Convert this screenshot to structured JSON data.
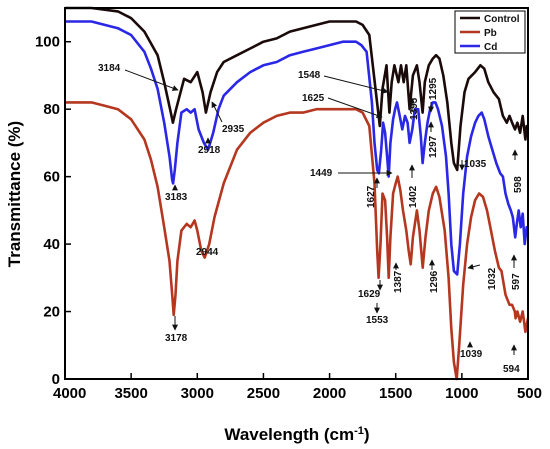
{
  "chart_data": {
    "type": "line",
    "xlabel": "Wavelength (cm",
    "xlabel_sup": "-1",
    "xlabel_close": ")",
    "ylabel": "Transmittance (%)",
    "xlim": [
      4000,
      500
    ],
    "ylim": [
      0,
      110
    ],
    "x_ticks": [
      4000,
      3500,
      3000,
      2500,
      2000,
      1500,
      1000,
      500
    ],
    "y_ticks": [
      0,
      20,
      40,
      60,
      80,
      100
    ],
    "legend_position": "top-right",
    "grid": false,
    "series": [
      {
        "name": "Control",
        "color": "#1a0a0a",
        "points": [
          [
            4000,
            110
          ],
          [
            3800,
            110
          ],
          [
            3600,
            109
          ],
          [
            3500,
            107
          ],
          [
            3400,
            103
          ],
          [
            3300,
            96
          ],
          [
            3250,
            88
          ],
          [
            3200,
            79
          ],
          [
            3184,
            76
          ],
          [
            3160,
            80
          ],
          [
            3100,
            89
          ],
          [
            3050,
            88
          ],
          [
            3000,
            91
          ],
          [
            2960,
            85
          ],
          [
            2935,
            79
          ],
          [
            2900,
            85
          ],
          [
            2850,
            91
          ],
          [
            2800,
            94
          ],
          [
            2700,
            96
          ],
          [
            2600,
            98
          ],
          [
            2500,
            100
          ],
          [
            2400,
            101
          ],
          [
            2300,
            103
          ],
          [
            2200,
            104
          ],
          [
            2100,
            105
          ],
          [
            2000,
            106
          ],
          [
            1900,
            106
          ],
          [
            1800,
            106
          ],
          [
            1750,
            105
          ],
          [
            1700,
            102
          ],
          [
            1650,
            85
          ],
          [
            1620,
            75
          ],
          [
            1600,
            86
          ],
          [
            1570,
            93
          ],
          [
            1548,
            79
          ],
          [
            1530,
            88
          ],
          [
            1510,
            93
          ],
          [
            1480,
            88
          ],
          [
            1460,
            93
          ],
          [
            1440,
            88
          ],
          [
            1420,
            93
          ],
          [
            1395,
            80
          ],
          [
            1370,
            90
          ],
          [
            1340,
            93
          ],
          [
            1320,
            88
          ],
          [
            1297,
            79
          ],
          [
            1280,
            88
          ],
          [
            1250,
            93
          ],
          [
            1220,
            95
          ],
          [
            1195,
            96
          ],
          [
            1170,
            95
          ],
          [
            1140,
            90
          ],
          [
            1110,
            82
          ],
          [
            1080,
            70
          ],
          [
            1060,
            64
          ],
          [
            1035,
            62
          ],
          [
            1010,
            75
          ],
          [
            980,
            85
          ],
          [
            950,
            89
          ],
          [
            900,
            91
          ],
          [
            860,
            93
          ],
          [
            830,
            92
          ],
          [
            800,
            88
          ],
          [
            760,
            85
          ],
          [
            720,
            83
          ],
          [
            690,
            78
          ],
          [
            660,
            76
          ],
          [
            640,
            78
          ],
          [
            620,
            76
          ],
          [
            598,
            74
          ],
          [
            580,
            76
          ],
          [
            560,
            73
          ],
          [
            540,
            78
          ],
          [
            520,
            71
          ],
          [
            510,
            75
          ],
          [
            500,
            74
          ]
        ]
      },
      {
        "name": "Pb",
        "color": "#b5371f",
        "points": [
          [
            4000,
            82
          ],
          [
            3800,
            82
          ],
          [
            3700,
            81
          ],
          [
            3600,
            80
          ],
          [
            3500,
            77
          ],
          [
            3400,
            71
          ],
          [
            3350,
            65
          ],
          [
            3300,
            57
          ],
          [
            3250,
            45
          ],
          [
            3210,
            35
          ],
          [
            3190,
            25
          ],
          [
            3178,
            19
          ],
          [
            3165,
            25
          ],
          [
            3150,
            35
          ],
          [
            3120,
            44
          ],
          [
            3080,
            46
          ],
          [
            3050,
            45
          ],
          [
            3020,
            47
          ],
          [
            3000,
            44
          ],
          [
            2970,
            38
          ],
          [
            2944,
            36
          ],
          [
            2910,
            40
          ],
          [
            2870,
            48
          ],
          [
            2800,
            58
          ],
          [
            2700,
            68
          ],
          [
            2600,
            73
          ],
          [
            2500,
            76
          ],
          [
            2400,
            78
          ],
          [
            2300,
            79
          ],
          [
            2200,
            79
          ],
          [
            2100,
            80
          ],
          [
            2000,
            80
          ],
          [
            1900,
            80
          ],
          [
            1800,
            80
          ],
          [
            1750,
            79
          ],
          [
            1700,
            75
          ],
          [
            1660,
            58
          ],
          [
            1640,
            38
          ],
          [
            1629,
            30
          ],
          [
            1615,
            40
          ],
          [
            1600,
            55
          ],
          [
            1580,
            53
          ],
          [
            1565,
            42
          ],
          [
            1553,
            30
          ],
          [
            1540,
            42
          ],
          [
            1520,
            55
          ],
          [
            1500,
            58
          ],
          [
            1485,
            60
          ],
          [
            1465,
            56
          ],
          [
            1445,
            50
          ],
          [
            1420,
            44
          ],
          [
            1402,
            38
          ],
          [
            1387,
            34
          ],
          [
            1370,
            42
          ],
          [
            1340,
            50
          ],
          [
            1320,
            44
          ],
          [
            1296,
            33
          ],
          [
            1275,
            42
          ],
          [
            1250,
            50
          ],
          [
            1220,
            55
          ],
          [
            1195,
            57
          ],
          [
            1170,
            54
          ],
          [
            1130,
            44
          ],
          [
            1100,
            30
          ],
          [
            1080,
            15
          ],
          [
            1060,
            5
          ],
          [
            1039,
            0
          ],
          [
            1020,
            10
          ],
          [
            990,
            28
          ],
          [
            960,
            40
          ],
          [
            930,
            48
          ],
          [
            900,
            53
          ],
          [
            870,
            55
          ],
          [
            840,
            54
          ],
          [
            810,
            50
          ],
          [
            780,
            44
          ],
          [
            750,
            38
          ],
          [
            720,
            33
          ],
          [
            700,
            32
          ],
          [
            670,
            25
          ],
          [
            640,
            22
          ],
          [
            620,
            22
          ],
          [
            600,
            20
          ],
          [
            594,
            18
          ],
          [
            580,
            20
          ],
          [
            560,
            17
          ],
          [
            540,
            20
          ],
          [
            520,
            14
          ],
          [
            510,
            16
          ],
          [
            500,
            18
          ]
        ]
      },
      {
        "name": "Cd",
        "color": "#2a27e6",
        "points": [
          [
            4000,
            106
          ],
          [
            3800,
            106
          ],
          [
            3700,
            105
          ],
          [
            3600,
            104
          ],
          [
            3500,
            102
          ],
          [
            3400,
            97
          ],
          [
            3350,
            92
          ],
          [
            3300,
            86
          ],
          [
            3250,
            76
          ],
          [
            3210,
            66
          ],
          [
            3190,
            59
          ],
          [
            3183,
            58
          ],
          [
            3170,
            62
          ],
          [
            3150,
            70
          ],
          [
            3120,
            79
          ],
          [
            3080,
            80
          ],
          [
            3050,
            79
          ],
          [
            3020,
            80
          ],
          [
            2990,
            74
          ],
          [
            2950,
            70
          ],
          [
            2918,
            68
          ],
          [
            2880,
            73
          ],
          [
            2840,
            80
          ],
          [
            2800,
            84
          ],
          [
            2700,
            88
          ],
          [
            2600,
            91
          ],
          [
            2500,
            93
          ],
          [
            2400,
            94
          ],
          [
            2300,
            96
          ],
          [
            2200,
            97
          ],
          [
            2100,
            98
          ],
          [
            2000,
            99
          ],
          [
            1900,
            100
          ],
          [
            1800,
            100
          ],
          [
            1760,
            99
          ],
          [
            1720,
            97
          ],
          [
            1680,
            82
          ],
          [
            1660,
            70
          ],
          [
            1640,
            62
          ],
          [
            1627,
            61
          ],
          [
            1610,
            68
          ],
          [
            1595,
            76
          ],
          [
            1580,
            73
          ],
          [
            1565,
            66
          ],
          [
            1553,
            60
          ],
          [
            1540,
            70
          ],
          [
            1520,
            77
          ],
          [
            1505,
            80
          ],
          [
            1490,
            82
          ],
          [
            1470,
            78
          ],
          [
            1450,
            74
          ],
          [
            1430,
            78
          ],
          [
            1410,
            76
          ],
          [
            1395,
            70
          ],
          [
            1375,
            74
          ],
          [
            1355,
            80
          ],
          [
            1330,
            80
          ],
          [
            1310,
            72
          ],
          [
            1297,
            64
          ],
          [
            1280,
            70
          ],
          [
            1260,
            76
          ],
          [
            1240,
            80
          ],
          [
            1220,
            82
          ],
          [
            1200,
            82
          ],
          [
            1180,
            80
          ],
          [
            1150,
            75
          ],
          [
            1120,
            66
          ],
          [
            1100,
            55
          ],
          [
            1080,
            40
          ],
          [
            1060,
            32
          ],
          [
            1035,
            31
          ],
          [
            1015,
            40
          ],
          [
            990,
            55
          ],
          [
            960,
            66
          ],
          [
            930,
            72
          ],
          [
            900,
            76
          ],
          [
            875,
            78
          ],
          [
            850,
            79
          ],
          [
            830,
            77
          ],
          [
            800,
            72
          ],
          [
            770,
            68
          ],
          [
            740,
            64
          ],
          [
            710,
            61
          ],
          [
            690,
            60
          ],
          [
            670,
            55
          ],
          [
            650,
            52
          ],
          [
            630,
            50
          ],
          [
            615,
            48
          ],
          [
            597,
            42
          ],
          [
            585,
            46
          ],
          [
            570,
            50
          ],
          [
            555,
            45
          ],
          [
            540,
            49
          ],
          [
            525,
            40
          ],
          [
            510,
            45
          ],
          [
            500,
            43
          ]
        ]
      }
    ],
    "annotations": [
      {
        "text": "3184",
        "color": "#1a0a0a"
      },
      {
        "text": "2935",
        "color": "#1a0a0a"
      },
      {
        "text": "1548",
        "color": "#1a0a0a"
      },
      {
        "text": "1395",
        "color": "#1a0a0a"
      },
      {
        "text": "1295",
        "color": "#1a0a0a"
      },
      {
        "text": "1297",
        "color": "#1a0a0a"
      },
      {
        "text": "1035",
        "color": "#1a0a0a"
      },
      {
        "text": "598",
        "color": "#1a0a0a"
      },
      {
        "text": "1625",
        "color": "#1a0a0a"
      },
      {
        "text": "1449",
        "color": "#1a0a0a"
      },
      {
        "text": "1627",
        "color": "#1a0a0a"
      },
      {
        "text": "1402",
        "color": "#1a0a0a"
      },
      {
        "text": "2918",
        "color": "#1a0a0a"
      },
      {
        "text": "3183",
        "color": "#1a0a0a"
      },
      {
        "text": "2944",
        "color": "#1a0a0a"
      },
      {
        "text": "3178",
        "color": "#1a0a0a"
      },
      {
        "text": "1629",
        "color": "#1a0a0a"
      },
      {
        "text": "1553",
        "color": "#1a0a0a"
      },
      {
        "text": "1387",
        "color": "#1a0a0a"
      },
      {
        "text": "1296",
        "color": "#1a0a0a"
      },
      {
        "text": "1032",
        "color": "#1a0a0a"
      },
      {
        "text": "597",
        "color": "#1a0a0a"
      },
      {
        "text": "1039",
        "color": "#1a0a0a"
      },
      {
        "text": "594",
        "color": "#1a0a0a"
      }
    ]
  }
}
